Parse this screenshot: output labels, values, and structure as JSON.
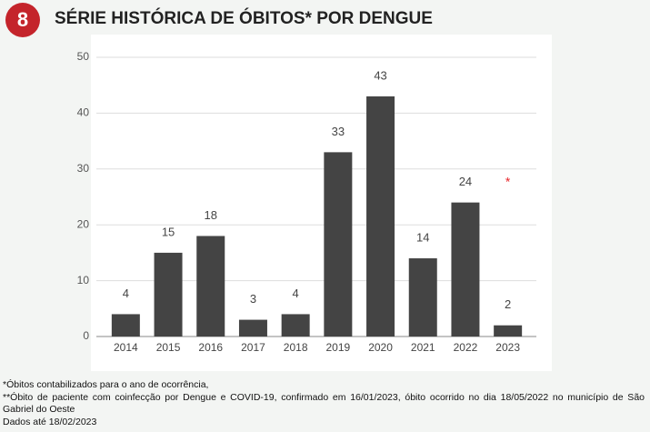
{
  "badge": "8",
  "chart_data": {
    "type": "bar",
    "title": "SÉRIE HISTÓRICA DE ÓBITOS* POR DENGUE",
    "categories": [
      "2014",
      "2015",
      "2016",
      "2017",
      "2018",
      "2019",
      "2020",
      "2021",
      "2022",
      "2023"
    ],
    "values": [
      4,
      15,
      18,
      3,
      4,
      33,
      43,
      14,
      24,
      2
    ],
    "color": "#444444",
    "ylim": [
      0,
      50
    ],
    "yticks": [
      0,
      10,
      20,
      30,
      40,
      50
    ],
    "grid": true,
    "annotation": "*",
    "annotation_color": "#e8262a"
  },
  "notes": [
    "*Óbitos contabilizados para o ano de ocorrência,",
    "**Óbito de paciente com coinfecção por Dengue e COVID-19, confirmado em 16/01/2023, óbito ocorrido no dia 18/05/2022 no município de São Gabriel do Oeste",
    "Dados até 18/02/2023"
  ]
}
